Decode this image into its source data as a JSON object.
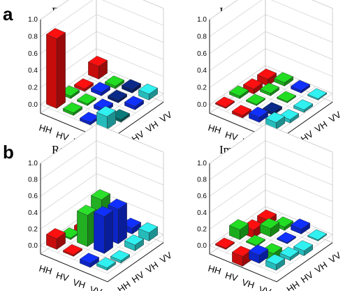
{
  "panel_labels": [
    "a",
    "b"
  ],
  "colors": {
    "positive_re": "#ff1010",
    "positive_large": "#2be02b",
    "mid": "#1030ff",
    "light": "#30f0f0",
    "dark": "#0a2a8a",
    "green": "#22dd22"
  },
  "chart_data": [
    {
      "type": "bar3d",
      "panel": "a",
      "title_main": "Re(",
      "title_sym": "ρ",
      "title_sub": "exp",
      "title_close": ")",
      "row_labels": [
        "HH",
        "HV",
        "VH",
        "VV"
      ],
      "col_labels": [
        "HH",
        "HV",
        "VH",
        "VV"
      ],
      "zticks": [
        "0.0",
        "0.2",
        "0.4",
        "0.6",
        "0.8",
        "1.0"
      ],
      "zlim": [
        -0.1,
        1.0
      ],
      "values": [
        [
          0.82,
          0.03,
          -0.03,
          0.15
        ],
        [
          0.03,
          0.02,
          0.04,
          -0.03
        ],
        [
          -0.03,
          0.04,
          0.03,
          0.04
        ],
        [
          0.15,
          -0.03,
          0.04,
          0.07
        ]
      ],
      "bar_colors": [
        [
          "#ff1010",
          "#22dd22",
          "#ff1010",
          "#ff1010"
        ],
        [
          "#22dd22",
          "#22dd22",
          "#1030ff",
          "#22dd22"
        ],
        [
          "#1030ff",
          "#1030ff",
          "#0a2a8a",
          "#0a2a8a"
        ],
        [
          "#30f0f0",
          "#0a7a7a",
          "#1030ff",
          "#30f0f0"
        ]
      ]
    },
    {
      "type": "bar3d",
      "panel": "a",
      "title_main": "Im(",
      "title_sym": "ρ",
      "title_sub": "exp",
      "title_close": ")",
      "row_labels": [
        "HH",
        "HV",
        "VH",
        "VV"
      ],
      "col_labels": [
        "HH",
        "HV",
        "VH",
        "VV"
      ],
      "zticks": [
        "0.0",
        "0.2",
        "0.4",
        "0.6",
        "0.8",
        "1.0"
      ],
      "zlim": [
        -0.1,
        1.0
      ],
      "values": [
        [
          0.0,
          0.03,
          -0.06,
          -0.08
        ],
        [
          -0.03,
          0.0,
          0.03,
          0.04
        ],
        [
          0.06,
          -0.03,
          0.0,
          0.03
        ],
        [
          0.08,
          -0.04,
          -0.03,
          0.0
        ]
      ],
      "bar_colors": [
        [
          "#ff1010",
          "#22dd22",
          "#ff1010",
          "#ff1010"
        ],
        [
          "#ff1010",
          "#22dd22",
          "#22dd22",
          "#22dd22"
        ],
        [
          "#1030ff",
          "#0a2a8a",
          "#22dd22",
          "#1030ff"
        ],
        [
          "#30f0f0",
          "#30f0f0",
          "#30f0f0",
          "#30f0f0"
        ]
      ]
    },
    {
      "type": "bar3d",
      "panel": "b",
      "title_main": "Re(",
      "title_sym": "ρ",
      "title_sub": "exp",
      "title_close": ")",
      "row_labels": [
        "HH",
        "HV",
        "VH",
        "VV"
      ],
      "col_labels": [
        "HH",
        "HV",
        "VH",
        "VV"
      ],
      "zticks": [
        "0.0",
        "0.2",
        "0.4",
        "0.6",
        "0.8",
        "1.0"
      ],
      "zlim": [
        -0.1,
        1.0
      ],
      "values": [
        [
          0.13,
          0.02,
          -0.05,
          0.03
        ],
        [
          0.02,
          0.38,
          0.45,
          -0.03
        ],
        [
          -0.05,
          0.45,
          0.42,
          0.07
        ],
        [
          0.03,
          -0.03,
          0.07,
          0.1
        ]
      ],
      "bar_colors": [
        [
          "#ff1010",
          "#22dd22",
          "#ff1010",
          "#ff1010"
        ],
        [
          "#ff1010",
          "#2be02b",
          "#2be02b",
          "#22dd22"
        ],
        [
          "#1030ff",
          "#1030ff",
          "#1030ff",
          "#1030ff"
        ],
        [
          "#30f0f0",
          "#30f0f0",
          "#30f0f0",
          "#30f0f0"
        ]
      ]
    },
    {
      "type": "bar3d",
      "panel": "b",
      "title_main": "Im(",
      "title_sym": "ρ",
      "title_sub": "exp",
      "title_close": ")",
      "row_labels": [
        "HH",
        "HV",
        "VH",
        "VV"
      ],
      "col_labels": [
        "HH",
        "HV",
        "VH",
        "VV"
      ],
      "zticks": [
        "0.0",
        "0.2",
        "0.4",
        "0.6",
        "0.8",
        "1.0"
      ],
      "zlim": [
        -0.1,
        1.0
      ],
      "values": [
        [
          0.0,
          0.12,
          -0.1,
          -0.07
        ],
        [
          -0.12,
          0.0,
          0.1,
          -0.04
        ],
        [
          0.1,
          -0.1,
          0.0,
          0.06
        ],
        [
          0.07,
          0.04,
          -0.06,
          0.0
        ]
      ],
      "bar_colors": [
        [
          "#ff1010",
          "#22dd22",
          "#ff1010",
          "#ff1010"
        ],
        [
          "#ff1010",
          "#22dd22",
          "#22dd22",
          "#22dd22"
        ],
        [
          "#1030ff",
          "#22dd22",
          "#1030ff",
          "#1030ff"
        ],
        [
          "#30f0f0",
          "#30f0f0",
          "#30f0f0",
          "#30f0f0"
        ]
      ]
    }
  ]
}
